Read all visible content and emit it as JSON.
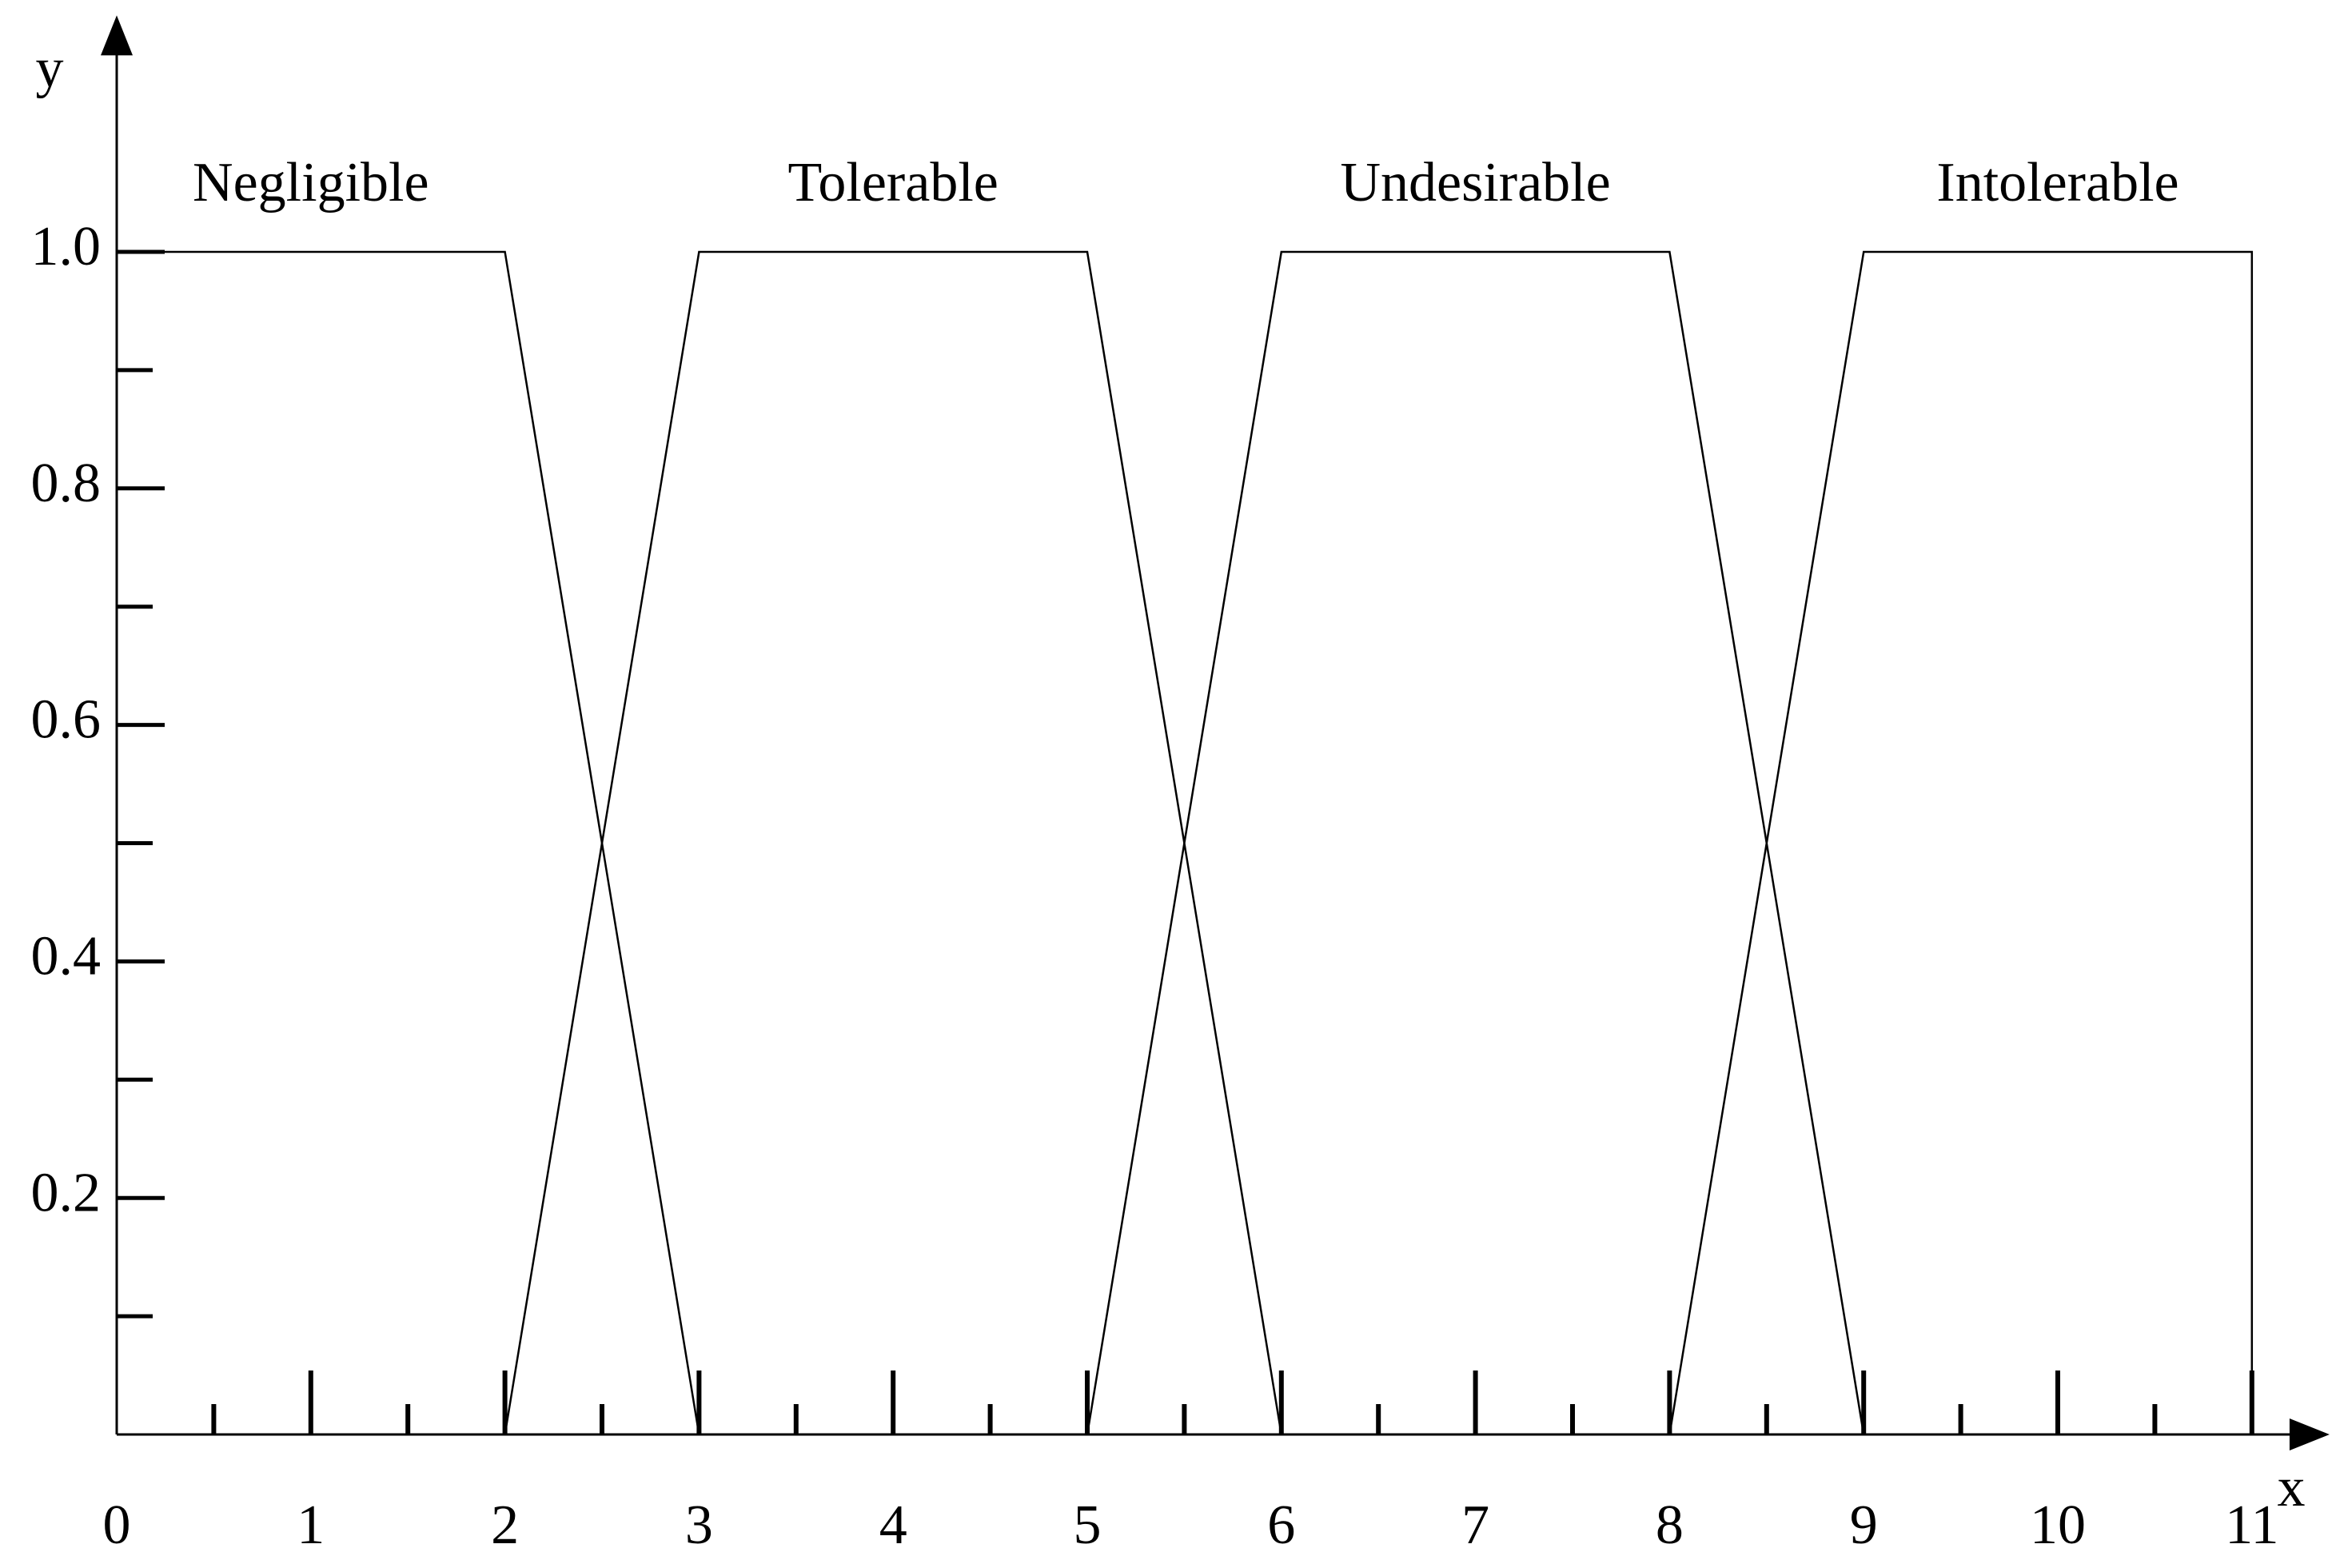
{
  "chart_data": {
    "type": "line",
    "x_label": "x",
    "y_label": "y",
    "xlim": [
      0,
      11.4
    ],
    "ylim": [
      0,
      1.2
    ],
    "xticks": [
      0,
      1,
      2,
      3,
      4,
      5,
      6,
      7,
      8,
      9,
      10,
      11
    ],
    "xminorticks": [
      0.5,
      1.5,
      2.5,
      3.5,
      4.5,
      5.5,
      6.5,
      7.5,
      8.5,
      9.5,
      10.5
    ],
    "yticks": [
      0.2,
      0.4,
      0.6,
      0.8,
      {
        "value": 1,
        "label": "1.0"
      }
    ],
    "yminorticks": [
      0.1,
      0.3,
      0.5,
      0.7,
      0.9
    ],
    "series": [
      {
        "name": "Negligible",
        "color": "#000000",
        "x": [
          0,
          2,
          3
        ],
        "values": [
          1,
          1,
          0
        ]
      },
      {
        "name": "Tolerable",
        "color": "#000000",
        "x": [
          2,
          3,
          5,
          6
        ],
        "values": [
          0,
          1,
          1,
          0
        ]
      },
      {
        "name": "Undesirable",
        "color": "#000000",
        "x": [
          5,
          6,
          8,
          9
        ],
        "values": [
          0,
          1,
          1,
          0
        ]
      },
      {
        "name": "Intolerable",
        "color": "#000000",
        "x": [
          8,
          9,
          11,
          11
        ],
        "values": [
          0,
          1,
          1,
          0
        ]
      }
    ]
  }
}
